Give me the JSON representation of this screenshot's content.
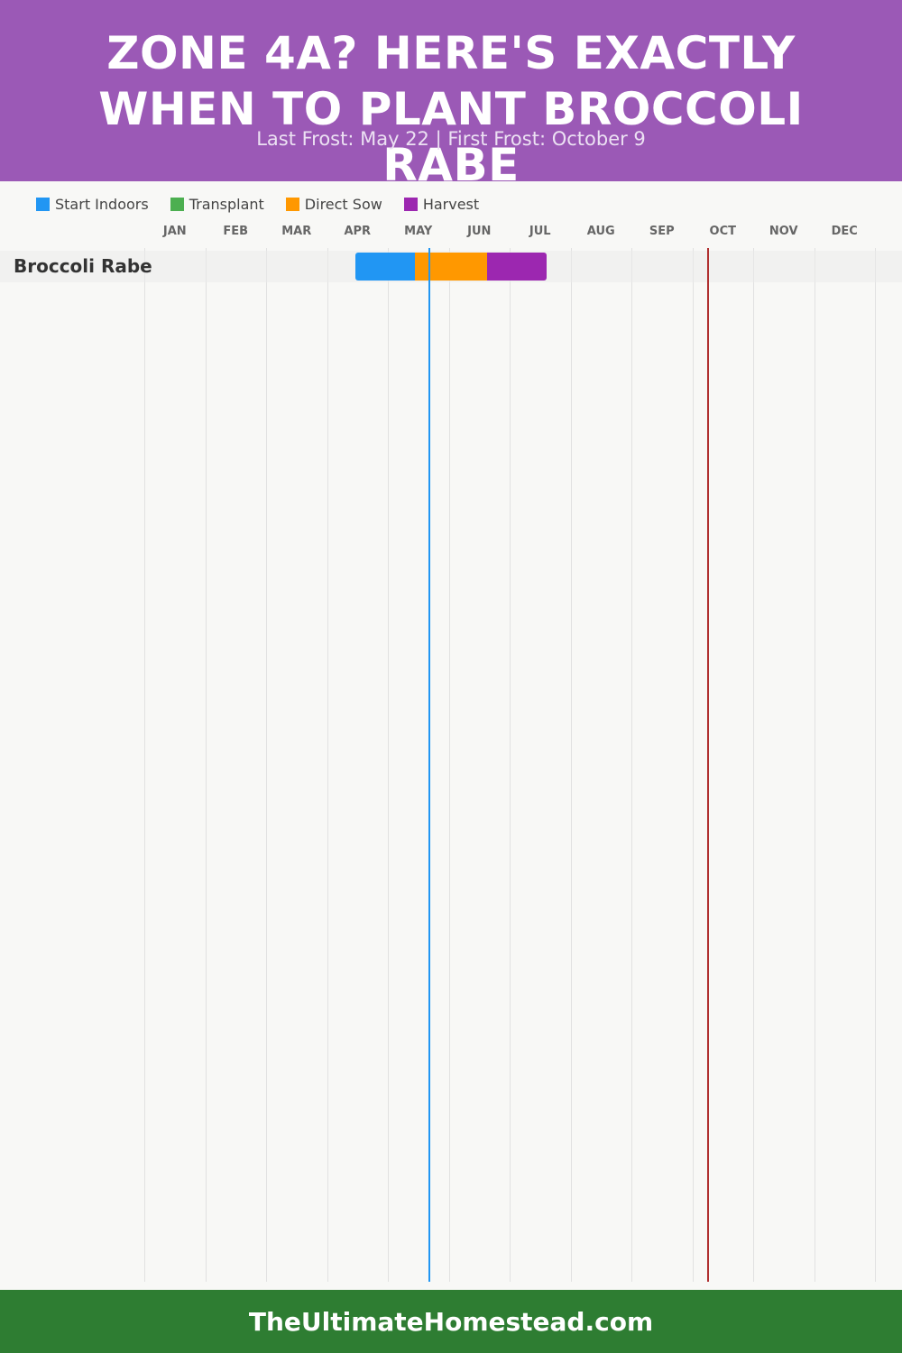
{
  "header": {
    "title": "Zone 4A? Here's Exactly When to Plant Broccoli Rabe",
    "subtitle": "Last Frost: May 22 | First Frost: October 9"
  },
  "legend": [
    {
      "label": "Start Indoors",
      "color": "#2196f3"
    },
    {
      "label": "Transplant",
      "color": "#4caf50"
    },
    {
      "label": "Direct Sow",
      "color": "#ff9800"
    },
    {
      "label": "Harvest",
      "color": "#9c27b0"
    }
  ],
  "chart_data": {
    "type": "gantt",
    "months": [
      "JAN",
      "FEB",
      "MAR",
      "APR",
      "MAY",
      "JUN",
      "JUL",
      "AUG",
      "SEP",
      "OCT",
      "NOV",
      "DEC"
    ],
    "rows": [
      {
        "name": "Broccoli Rabe",
        "segments": [
          {
            "activity": "Start Indoors",
            "start": "2024-04-15",
            "end": "2024-05-15",
            "color": "#2196f3"
          },
          {
            "activity": "Direct Sow",
            "start": "2024-05-15",
            "end": "2024-06-20",
            "color": "#ff9800"
          },
          {
            "activity": "Harvest",
            "start": "2024-06-20",
            "end": "2024-07-20",
            "color": "#9c27b0"
          }
        ]
      }
    ],
    "frost_lines": [
      {
        "name": "Last Frost",
        "date": "2024-05-22",
        "color": "#2196f3"
      },
      {
        "name": "First Frost",
        "date": "2024-10-09",
        "color": "#b03030"
      }
    ]
  },
  "footer": {
    "text": "TheUltimateHomestead.com"
  }
}
